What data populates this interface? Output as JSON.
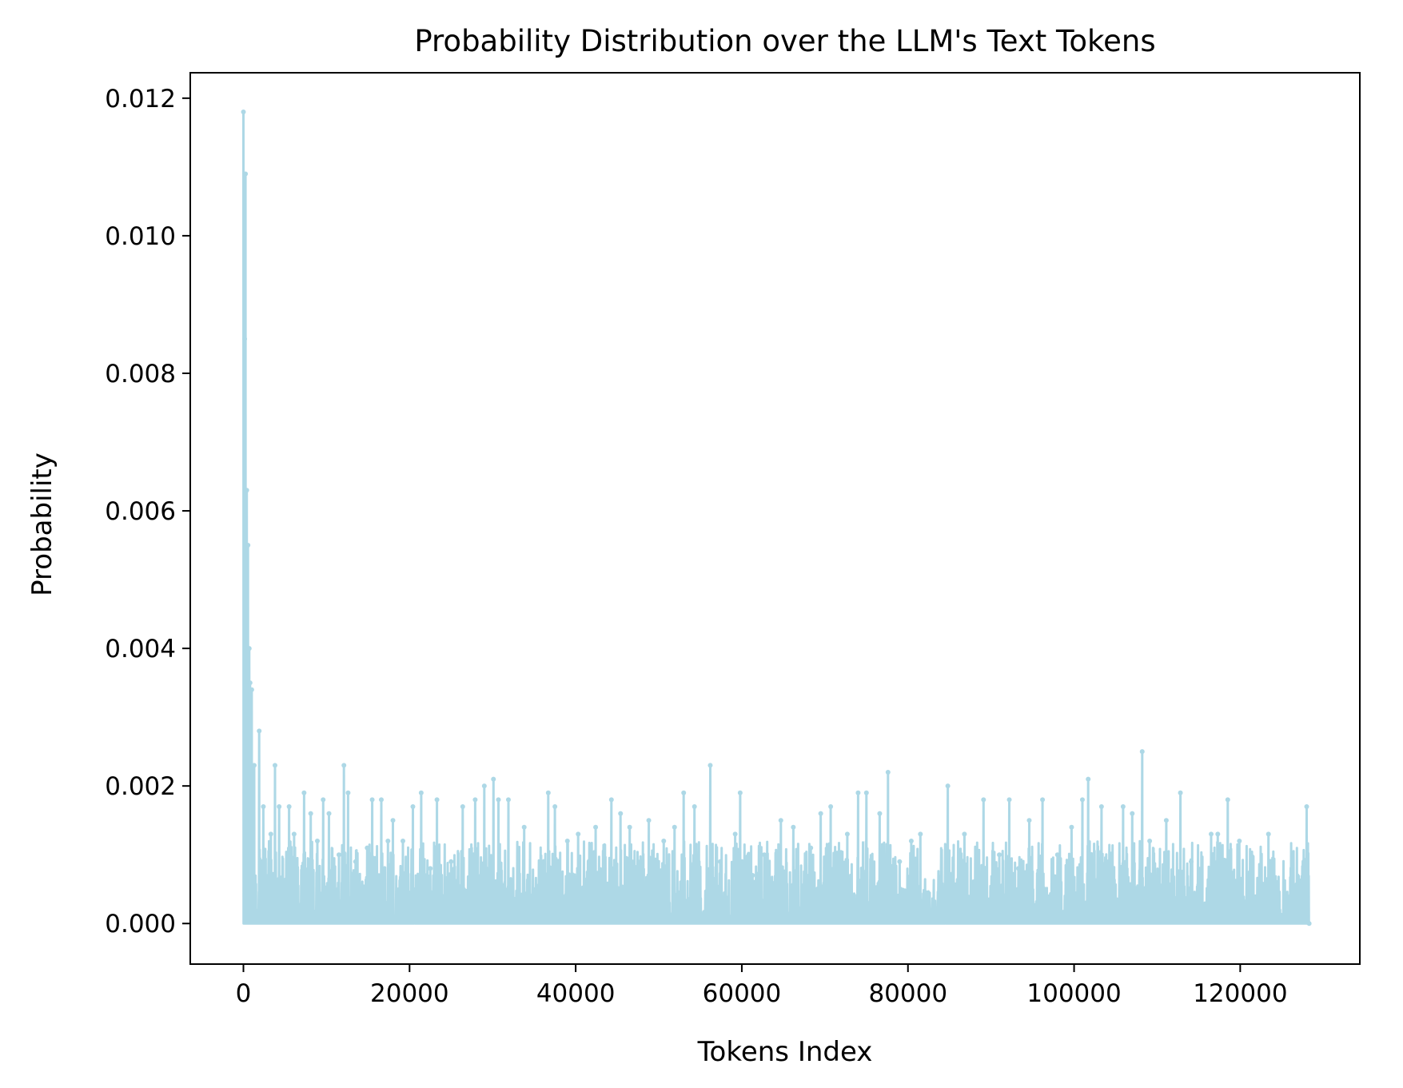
{
  "chart_data": {
    "type": "line",
    "title": "Probability Distribution over the LLM's Text Tokens",
    "xlabel": "Tokens Index",
    "ylabel": "Probability",
    "xlim": [
      -6400,
      134400
    ],
    "ylim": [
      -0.00059,
      0.01237
    ],
    "xticks": [
      {
        "value": 0,
        "label": "0"
      },
      {
        "value": 20000,
        "label": "20000"
      },
      {
        "value": 40000,
        "label": "40000"
      },
      {
        "value": 60000,
        "label": "60000"
      },
      {
        "value": 80000,
        "label": "80000"
      },
      {
        "value": 100000,
        "label": "100000"
      },
      {
        "value": 120000,
        "label": "120000"
      }
    ],
    "yticks": [
      {
        "value": 0.0,
        "label": "0.000"
      },
      {
        "value": 0.002,
        "label": "0.002"
      },
      {
        "value": 0.004,
        "label": "0.004"
      },
      {
        "value": 0.006,
        "label": "0.006"
      },
      {
        "value": 0.008,
        "label": "0.008"
      },
      {
        "value": 0.01,
        "label": "0.010"
      },
      {
        "value": 0.012,
        "label": "0.012"
      }
    ],
    "grid": false,
    "legend": "none",
    "series_color": "#add8e6",
    "peaks": [
      [
        0,
        0.0118
      ],
      [
        150,
        0.0085
      ],
      [
        250,
        0.0109
      ],
      [
        400,
        0.0063
      ],
      [
        550,
        0.0055
      ],
      [
        700,
        0.004
      ],
      [
        800,
        0.0035
      ],
      [
        1000,
        0.0034
      ],
      [
        1300,
        0.0023
      ],
      [
        1900,
        0.0028
      ],
      [
        2400,
        0.0017
      ],
      [
        3300,
        0.0013
      ],
      [
        3800,
        0.0023
      ],
      [
        4300,
        0.0017
      ],
      [
        5500,
        0.0017
      ],
      [
        6100,
        0.0013
      ],
      [
        7300,
        0.0019
      ],
      [
        8100,
        0.0016
      ],
      [
        8900,
        0.0012
      ],
      [
        9600,
        0.0018
      ],
      [
        10300,
        0.0016
      ],
      [
        11500,
        0.001
      ],
      [
        12100,
        0.0023
      ],
      [
        12600,
        0.0019
      ],
      [
        13500,
        0.0009
      ],
      [
        14900,
        0.0011
      ],
      [
        15500,
        0.0018
      ],
      [
        16600,
        0.0018
      ],
      [
        17400,
        0.0012
      ],
      [
        18000,
        0.0015
      ],
      [
        19200,
        0.0012
      ],
      [
        20400,
        0.0017
      ],
      [
        21400,
        0.0019
      ],
      [
        22500,
        0.0008
      ],
      [
        23300,
        0.0018
      ],
      [
        25000,
        0.0009
      ],
      [
        26400,
        0.0017
      ],
      [
        27900,
        0.0018
      ],
      [
        29000,
        0.002
      ],
      [
        30100,
        0.0021
      ],
      [
        30700,
        0.0018
      ],
      [
        31900,
        0.0018
      ],
      [
        33800,
        0.0014
      ],
      [
        36700,
        0.0019
      ],
      [
        37500,
        0.0017
      ],
      [
        39000,
        0.0012
      ],
      [
        40300,
        0.0013
      ],
      [
        42400,
        0.0014
      ],
      [
        44300,
        0.0018
      ],
      [
        45400,
        0.0016
      ],
      [
        46500,
        0.0014
      ],
      [
        48800,
        0.0015
      ],
      [
        50600,
        0.0012
      ],
      [
        51900,
        0.0014
      ],
      [
        53000,
        0.0019
      ],
      [
        54300,
        0.0017
      ],
      [
        56200,
        0.0023
      ],
      [
        57400,
        0.0009
      ],
      [
        59200,
        0.0013
      ],
      [
        59800,
        0.0019
      ],
      [
        61300,
        0.0007
      ],
      [
        62700,
        0.001
      ],
      [
        64700,
        0.0015
      ],
      [
        66200,
        0.0014
      ],
      [
        68300,
        0.0011
      ],
      [
        69500,
        0.0016
      ],
      [
        70700,
        0.0017
      ],
      [
        72700,
        0.0013
      ],
      [
        74000,
        0.0019
      ],
      [
        75000,
        0.0019
      ],
      [
        76600,
        0.0016
      ],
      [
        77600,
        0.0022
      ],
      [
        79000,
        0.0009
      ],
      [
        80400,
        0.0012
      ],
      [
        81500,
        0.0013
      ],
      [
        84800,
        0.002
      ],
      [
        86800,
        0.0013
      ],
      [
        89100,
        0.0018
      ],
      [
        91000,
        0.001
      ],
      [
        92200,
        0.0018
      ],
      [
        93300,
        0.0008
      ],
      [
        94600,
        0.0015
      ],
      [
        96200,
        0.0018
      ],
      [
        98000,
        0.001
      ],
      [
        99700,
        0.0014
      ],
      [
        101000,
        0.0018
      ],
      [
        101700,
        0.0021
      ],
      [
        103300,
        0.0017
      ],
      [
        105900,
        0.0017
      ],
      [
        107000,
        0.0016
      ],
      [
        108200,
        0.0025
      ],
      [
        109100,
        0.0012
      ],
      [
        111100,
        0.0015
      ],
      [
        112800,
        0.0019
      ],
      [
        114100,
        0.0009
      ],
      [
        116500,
        0.0013
      ],
      [
        117300,
        0.0013
      ],
      [
        118500,
        0.0018
      ],
      [
        119900,
        0.0012
      ],
      [
        121300,
        0.0007
      ],
      [
        123400,
        0.0013
      ],
      [
        125500,
        0.0003
      ],
      [
        127000,
        0.0006
      ],
      [
        128000,
        0.0017
      ],
      [
        128300,
        0.0
      ]
    ]
  }
}
